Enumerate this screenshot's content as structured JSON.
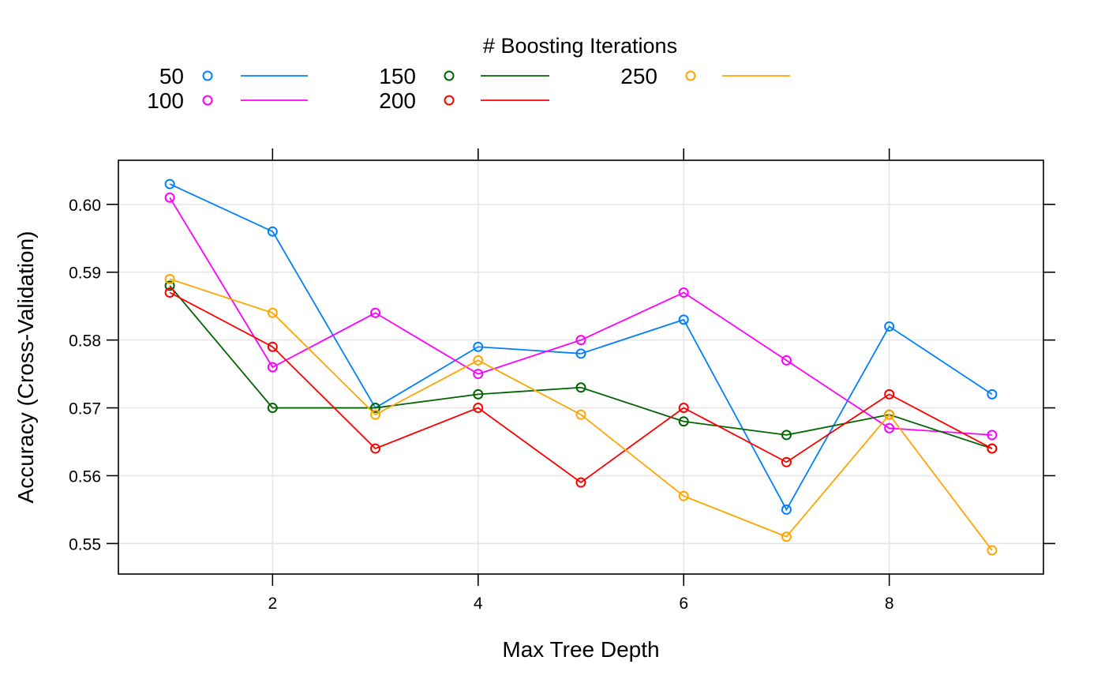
{
  "chart_data": {
    "type": "line",
    "title": "",
    "xlabel": "Max Tree Depth",
    "ylabel": "Accuracy (Cross-Validation)",
    "xlim": [
      0.5,
      9.5
    ],
    "ylim": [
      0.5455,
      0.6065
    ],
    "grid": true,
    "x": [
      1,
      2,
      3,
      4,
      5,
      6,
      7,
      8,
      9
    ],
    "x_ticks": [
      2,
      4,
      6,
      8
    ],
    "x_tick_labels": [
      "2",
      "4",
      "6",
      "8"
    ],
    "y_ticks": [
      0.55,
      0.56,
      0.57,
      0.58,
      0.59,
      0.6
    ],
    "y_tick_labels": [
      "0.55",
      "0.56",
      "0.57",
      "0.58",
      "0.59",
      "0.60"
    ],
    "legend": {
      "title": "# Boosting Iterations",
      "placement": "top"
    },
    "series": [
      {
        "name": "50",
        "color": "#0080ff",
        "values": [
          0.603,
          0.596,
          0.57,
          0.579,
          0.578,
          0.583,
          0.555,
          0.582,
          0.572
        ]
      },
      {
        "name": "100",
        "color": "#ff00ff",
        "values": [
          0.601,
          0.576,
          0.584,
          0.575,
          0.58,
          0.587,
          0.577,
          0.567,
          0.566
        ]
      },
      {
        "name": "150",
        "color": "#006400",
        "values": [
          0.588,
          0.57,
          0.57,
          0.572,
          0.573,
          0.568,
          0.566,
          0.569,
          0.564
        ]
      },
      {
        "name": "200",
        "color": "#ff0000",
        "values": [
          0.587,
          0.579,
          0.564,
          0.57,
          0.559,
          0.57,
          0.562,
          0.572,
          0.564
        ]
      },
      {
        "name": "250",
        "color": "#ffa500",
        "values": [
          0.589,
          0.584,
          0.569,
          0.577,
          0.569,
          0.557,
          0.551,
          0.569,
          0.549
        ]
      }
    ]
  }
}
